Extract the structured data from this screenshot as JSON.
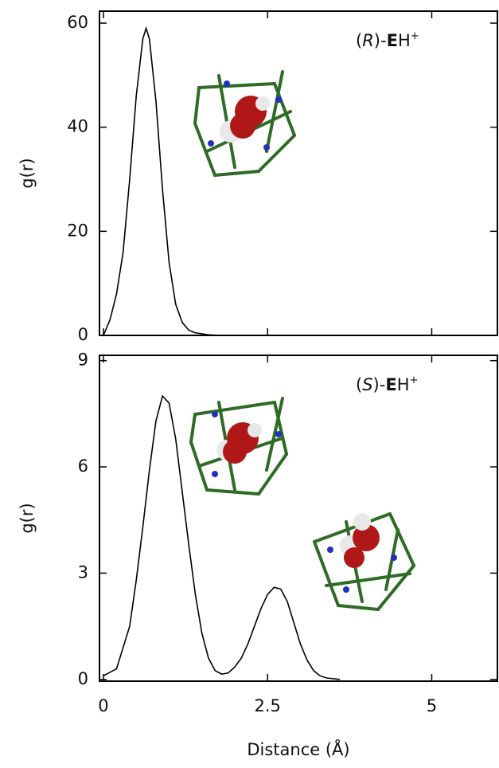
{
  "chart_data": [
    {
      "type": "line",
      "ylabel": "g(r)",
      "annotation": [
        "(",
        "R",
        ")-",
        "E",
        "H",
        "+"
      ],
      "x": [
        0,
        0.1,
        0.2,
        0.3,
        0.4,
        0.5,
        0.6,
        0.65,
        0.7,
        0.8,
        0.9,
        1.0,
        1.1,
        1.2,
        1.3,
        1.4,
        1.6,
        1.8
      ],
      "values": [
        0,
        3,
        8,
        16,
        30,
        46,
        57,
        59,
        57,
        45,
        28,
        14,
        6,
        2.5,
        1,
        0.5,
        0.1,
        0
      ],
      "color": "#000000",
      "xlim": [
        -0.06,
        6.0
      ],
      "xticks": [
        0,
        2.5,
        5
      ],
      "xtick_labels": false,
      "ylim": [
        0,
        62.3
      ],
      "yticks": [
        0,
        20,
        40,
        60
      ]
    },
    {
      "type": "line",
      "ylabel": "g(r)",
      "xlabel": "Distance (Å)",
      "annotation": [
        "(",
        "S",
        ")-",
        "E",
        "H",
        "+"
      ],
      "x": [
        0,
        0.2,
        0.4,
        0.5,
        0.6,
        0.7,
        0.8,
        0.9,
        1.0,
        1.1,
        1.2,
        1.3,
        1.4,
        1.5,
        1.6,
        1.7,
        1.8,
        1.9,
        2.0,
        2.1,
        2.2,
        2.3,
        2.4,
        2.5,
        2.6,
        2.7,
        2.8,
        2.9,
        3.0,
        3.1,
        3.2,
        3.3,
        3.4,
        3.6
      ],
      "values": [
        0.1,
        0.3,
        1.5,
        2.8,
        4.3,
        5.9,
        7.3,
        8.0,
        7.8,
        6.8,
        5.3,
        3.8,
        2.4,
        1.3,
        0.6,
        0.25,
        0.15,
        0.18,
        0.35,
        0.6,
        1.0,
        1.5,
        2.0,
        2.4,
        2.6,
        2.55,
        2.2,
        1.6,
        1.0,
        0.55,
        0.25,
        0.1,
        0.04,
        0
      ],
      "color": "#000000",
      "xlim": [
        -0.06,
        6.0
      ],
      "xticks": [
        0,
        2.5,
        5
      ],
      "xtick_labels": true,
      "ylim": [
        -0.05,
        9.15
      ],
      "yticks": [
        0,
        3,
        6,
        9
      ]
    }
  ]
}
